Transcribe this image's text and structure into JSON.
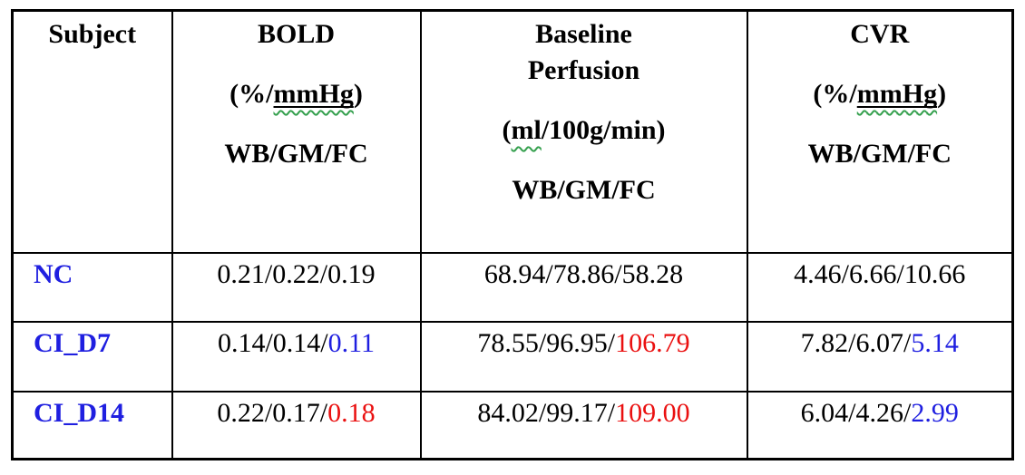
{
  "header": {
    "col_subject": {
      "title": "Subject"
    },
    "col_bold": {
      "title": "BOLD",
      "unit_open": "(%/",
      "unit_term": "mmHg",
      "unit_close": ")",
      "scope": "WB/GM/FC"
    },
    "col_perfusion": {
      "title": "Baseline\nPerfusion",
      "unit_open": "(",
      "unit_term": "ml",
      "unit_close": "/100g/min)",
      "scope": "WB/GM/FC"
    },
    "col_cvr": {
      "title": "CVR",
      "unit_open": "(%/",
      "unit_term": "mmHg",
      "unit_close": ")",
      "scope": "WB/GM/FC"
    }
  },
  "rows": {
    "nc": {
      "subject": "NC",
      "bold_main": "0.21/0.22/0.19",
      "perf_main": "68.94/78.86/58.28",
      "cvr_main": "4.46/6.66/10.66"
    },
    "ci_d7": {
      "subject": "CI_D7",
      "bold_main": "0.14/0.14/",
      "bold_hl": {
        "text": "0.11",
        "color": "blue"
      },
      "perf_main": "78.55/96.95/",
      "perf_hl": {
        "text": "106.79",
        "color": "red"
      },
      "cvr_main": "7.82/6.07/",
      "cvr_hl": {
        "text": "5.14",
        "color": "blue"
      }
    },
    "ci_d14": {
      "subject": "CI_D14",
      "bold_main": "0.22/0.17/",
      "bold_hl": {
        "text": "0.18",
        "color": "red"
      },
      "perf_main": "84.02/99.17/",
      "perf_hl": {
        "text": "109.00",
        "color": "red"
      },
      "cvr_main": "6.04/4.26/",
      "cvr_hl": {
        "text": "2.99",
        "color": "blue"
      }
    }
  },
  "colors": {
    "subject_blue": "#1f1fe0",
    "highlight_blue": "#1f1fe0",
    "highlight_red": "#ea1010",
    "spellcheck_green": "#35a04e",
    "border_black": "#000000"
  }
}
